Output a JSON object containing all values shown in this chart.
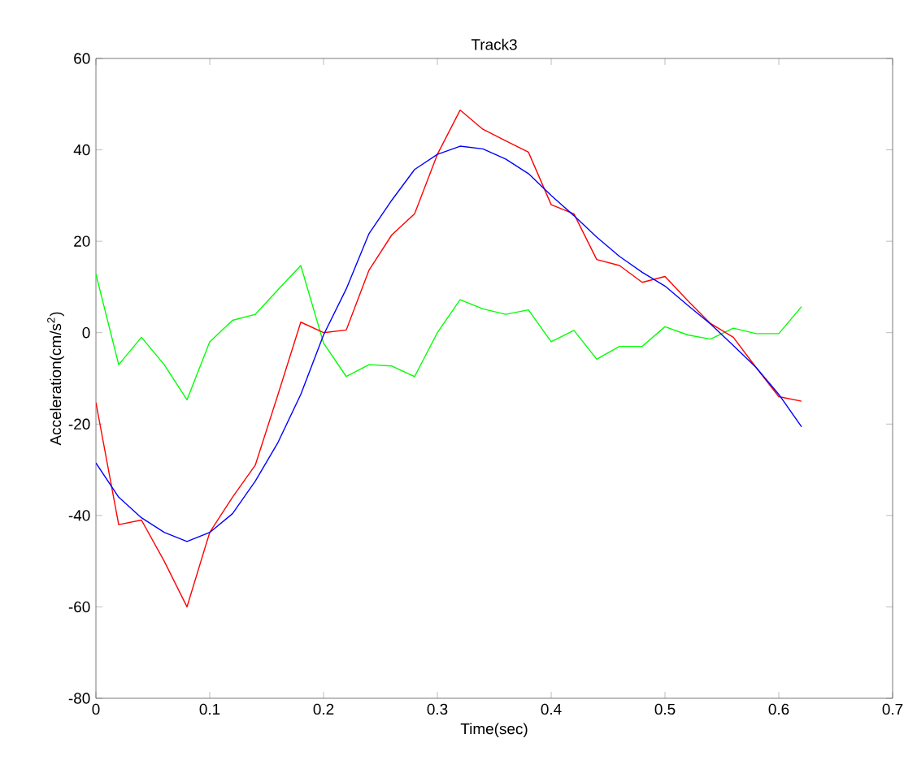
{
  "chart_data": {
    "type": "line",
    "title": "Track3",
    "xlabel": "Time(sec)",
    "ylabel": "Acceleration(cm/s$^{2}$)",
    "x": [
      0,
      0.02,
      0.04,
      0.06,
      0.08,
      0.1,
      0.12,
      0.14,
      0.16,
      0.18,
      0.2,
      0.22,
      0.24,
      0.26,
      0.28,
      0.3,
      0.32,
      0.34,
      0.36,
      0.38,
      0.4,
      0.42,
      0.44,
      0.46,
      0.48,
      0.5,
      0.52,
      0.54,
      0.56,
      0.58,
      0.6,
      0.62
    ],
    "series": [
      {
        "color": "#00ff00",
        "values": [
          12.8,
          -7,
          -1,
          -7,
          -14.7,
          -2,
          2.7,
          4,
          9.4,
          14.7,
          -2.3,
          -9.6,
          -7,
          -7.3,
          -9.6,
          0,
          7.2,
          5.2,
          4,
          5,
          -2,
          0.5,
          -5.8,
          -3,
          -3,
          1.3,
          -0.5,
          -1.4,
          1,
          -0.2,
          -0.2,
          5.7
        ]
      },
      {
        "color": "#ff0000",
        "values": [
          -15.3,
          -42,
          -41,
          -50,
          -60,
          -43.7,
          -36,
          -29,
          -13.5,
          2.3,
          0,
          0.6,
          13.7,
          21.4,
          26,
          39,
          48.7,
          44.5,
          42,
          39.5,
          28,
          26,
          16,
          14.7,
          11,
          12.3,
          7,
          2,
          -1,
          -7.6,
          -14,
          -15
        ]
      },
      {
        "color": "#0000ff",
        "values": [
          -28.5,
          -36,
          -40.5,
          -43.7,
          -45.7,
          -43.7,
          -39.6,
          -32.5,
          -24,
          -13.5,
          -0.5,
          9.6,
          21.7,
          29,
          35.7,
          39,
          40.8,
          40.2,
          38,
          34.8,
          30,
          25.6,
          20.9,
          16.7,
          13.2,
          10.2,
          6,
          1.9,
          -2.8,
          -7.6,
          -13.5,
          -20.6
        ]
      }
    ],
    "xlim": [
      0,
      0.7
    ],
    "ylim": [
      -80,
      60
    ],
    "xticks": [
      0,
      0.1,
      0.2,
      0.3,
      0.4,
      0.5,
      0.6,
      0.7
    ],
    "yticks": [
      -80,
      -60,
      -40,
      -20,
      0,
      20,
      40,
      60
    ],
    "grid": false,
    "marker": "none",
    "line_style": "solid"
  }
}
